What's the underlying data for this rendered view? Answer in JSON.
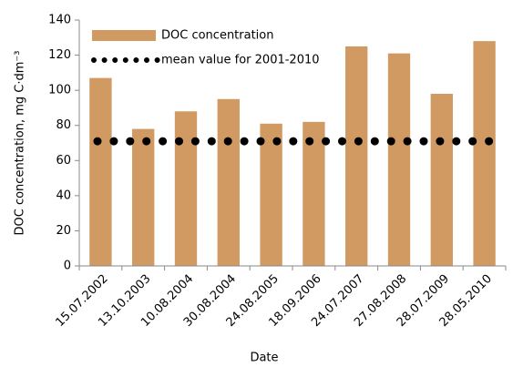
{
  "chart_data": {
    "type": "bar",
    "y_label": "DOC concentration, mg C·dm⁻³",
    "x_label": "Date",
    "categories": [
      "15.07.2002",
      "13.10.2003",
      "10.08.2004",
      "30.08.2004",
      "24.08.2005",
      "18.09.2006",
      "24.07.2007",
      "27.08.2008",
      "28.07.2009",
      "28.05.2010"
    ],
    "series": [
      {
        "name": "DOC concentration",
        "color": "#d09a62",
        "values": [
          107,
          78,
          88,
          95,
          81,
          82,
          125,
          121,
          98,
          128
        ]
      }
    ],
    "reference_line": {
      "name": "mean value for 2001-2010",
      "color": "#000000",
      "value": 71
    },
    "ylim": [
      0,
      140
    ],
    "yticks": [
      0,
      20,
      40,
      60,
      80,
      100,
      120,
      140
    ],
    "grid": false,
    "legend": "top-left"
  }
}
